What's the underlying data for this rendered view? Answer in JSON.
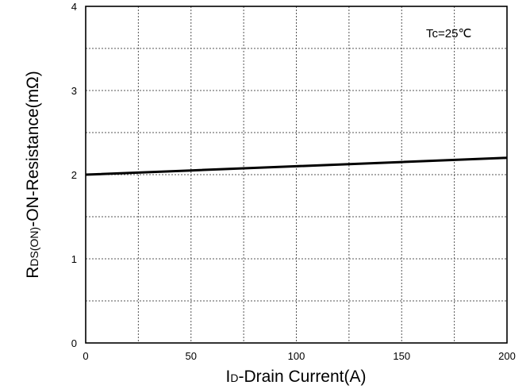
{
  "chart_data": {
    "type": "line",
    "x_label": {
      "main_pre": "I",
      "sub": "D",
      "main_post": "-Drain Current(A)"
    },
    "y_label": {
      "main_pre": "R",
      "sub": "DS(ON)",
      "main_post": "-ON-Resistance(mΩ)"
    },
    "annotation": "Tc=25℃",
    "xlim": [
      0,
      200
    ],
    "ylim": [
      0,
      4
    ],
    "x_ticks": [
      0,
      50,
      100,
      150,
      200
    ],
    "x_tick_labels": [
      "0",
      "50",
      "100",
      "150",
      "200"
    ],
    "y_ticks": [
      0,
      1,
      2,
      3,
      4
    ],
    "y_tick_labels": [
      "0",
      "1",
      "2",
      "3",
      "4"
    ],
    "x_minor_step": 25,
    "y_minor_step": 0.5,
    "grid": true,
    "series": [
      {
        "x": [
          0,
          50,
          100,
          150,
          200
        ],
        "y": [
          2.0,
          2.05,
          2.1,
          2.15,
          2.2
        ]
      }
    ]
  }
}
